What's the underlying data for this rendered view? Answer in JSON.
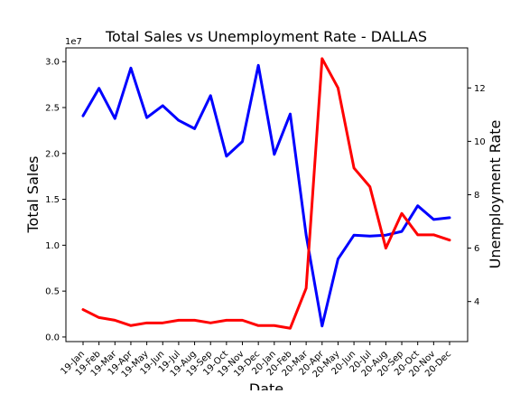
{
  "chart_data": {
    "type": "line",
    "title": "Total Sales vs Unemployment Rate - DALLAS",
    "xlabel": "Date",
    "ylabel_left": "Total Sales",
    "ylabel_right": "Unemployment Rate",
    "left_offset_text": "1e7",
    "categories": [
      "19-Jan",
      "19-Feb",
      "19-Mar",
      "19-Apr",
      "19-May",
      "19-Jun",
      "19-Jul",
      "19-Aug",
      "19-Sep",
      "19-Oct",
      "19-Nov",
      "19-Dec",
      "20-Jan",
      "20-Feb",
      "20-Mar",
      "20-Apr",
      "20-May",
      "20-Jun",
      "20-Jul",
      "20-Aug",
      "20-Sep",
      "20-Oct",
      "20-Nov",
      "20-Dec"
    ],
    "left_axis": {
      "ylim": [
        -0.05,
        3.15
      ],
      "ticks": [
        0.0,
        0.5,
        1.0,
        1.5,
        2.0,
        2.5,
        3.0
      ],
      "tick_labels": [
        "0.0",
        "0.5",
        "1.0",
        "1.5",
        "2.0",
        "2.5",
        "3.0"
      ]
    },
    "right_axis": {
      "ylim": [
        2.5,
        13.5
      ],
      "ticks": [
        4,
        6,
        8,
        10,
        12
      ],
      "tick_labels": [
        "4",
        "6",
        "8",
        "10",
        "12"
      ]
    },
    "series": [
      {
        "axis": "left",
        "color": "#0000ff",
        "values": [
          2.41,
          2.71,
          2.38,
          2.93,
          2.39,
          2.52,
          2.36,
          2.27,
          2.63,
          1.97,
          2.13,
          2.96,
          1.99,
          2.43,
          1.11,
          0.12,
          0.85,
          1.11,
          1.1,
          1.11,
          1.15,
          1.43,
          1.28,
          1.3
        ]
      },
      {
        "axis": "right",
        "color": "#ff0000",
        "values": [
          3.7,
          3.4,
          3.3,
          3.1,
          3.2,
          3.2,
          3.3,
          3.3,
          3.2,
          3.3,
          3.3,
          3.1,
          3.1,
          3.0,
          4.5,
          13.1,
          12.0,
          9.0,
          8.3,
          6.0,
          7.3,
          6.5,
          6.5,
          6.3
        ]
      }
    ],
    "grid": false,
    "legend": "none"
  }
}
